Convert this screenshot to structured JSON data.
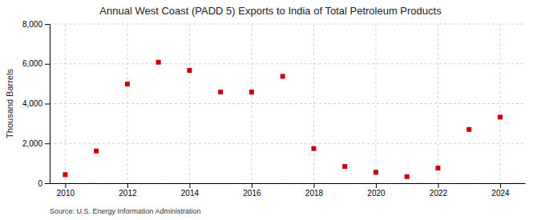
{
  "chart_data": {
    "type": "scatter",
    "title": "Annual West Coast (PADD 5) Exports to India of Total Petroleum Products",
    "ylabel": "Thousand Barrels",
    "source": "Source: U.S. Energy Information Administration",
    "x": [
      2010,
      2011,
      2012,
      2013,
      2014,
      2015,
      2016,
      2017,
      2018,
      2019,
      2020,
      2021,
      2022,
      2023,
      2024
    ],
    "values": [
      430,
      1620,
      4980,
      6080,
      5670,
      4580,
      4580,
      5370,
      1740,
      840,
      550,
      330,
      760,
      2700,
      3320
    ],
    "color": "#cc0000",
    "marker": "square",
    "xlim": [
      2009.5,
      2024.8
    ],
    "xticks": [
      2010,
      2012,
      2014,
      2016,
      2018,
      2020,
      2022,
      2024
    ],
    "ylim": [
      0,
      8000
    ],
    "yticks": [
      0,
      {
        "value": 2000,
        "label": "2,000"
      },
      {
        "value": 4000,
        "label": "4,000"
      },
      {
        "value": 6000,
        "label": "6,000"
      },
      {
        "value": 8000,
        "label": "8,000"
      }
    ],
    "grid": true
  }
}
